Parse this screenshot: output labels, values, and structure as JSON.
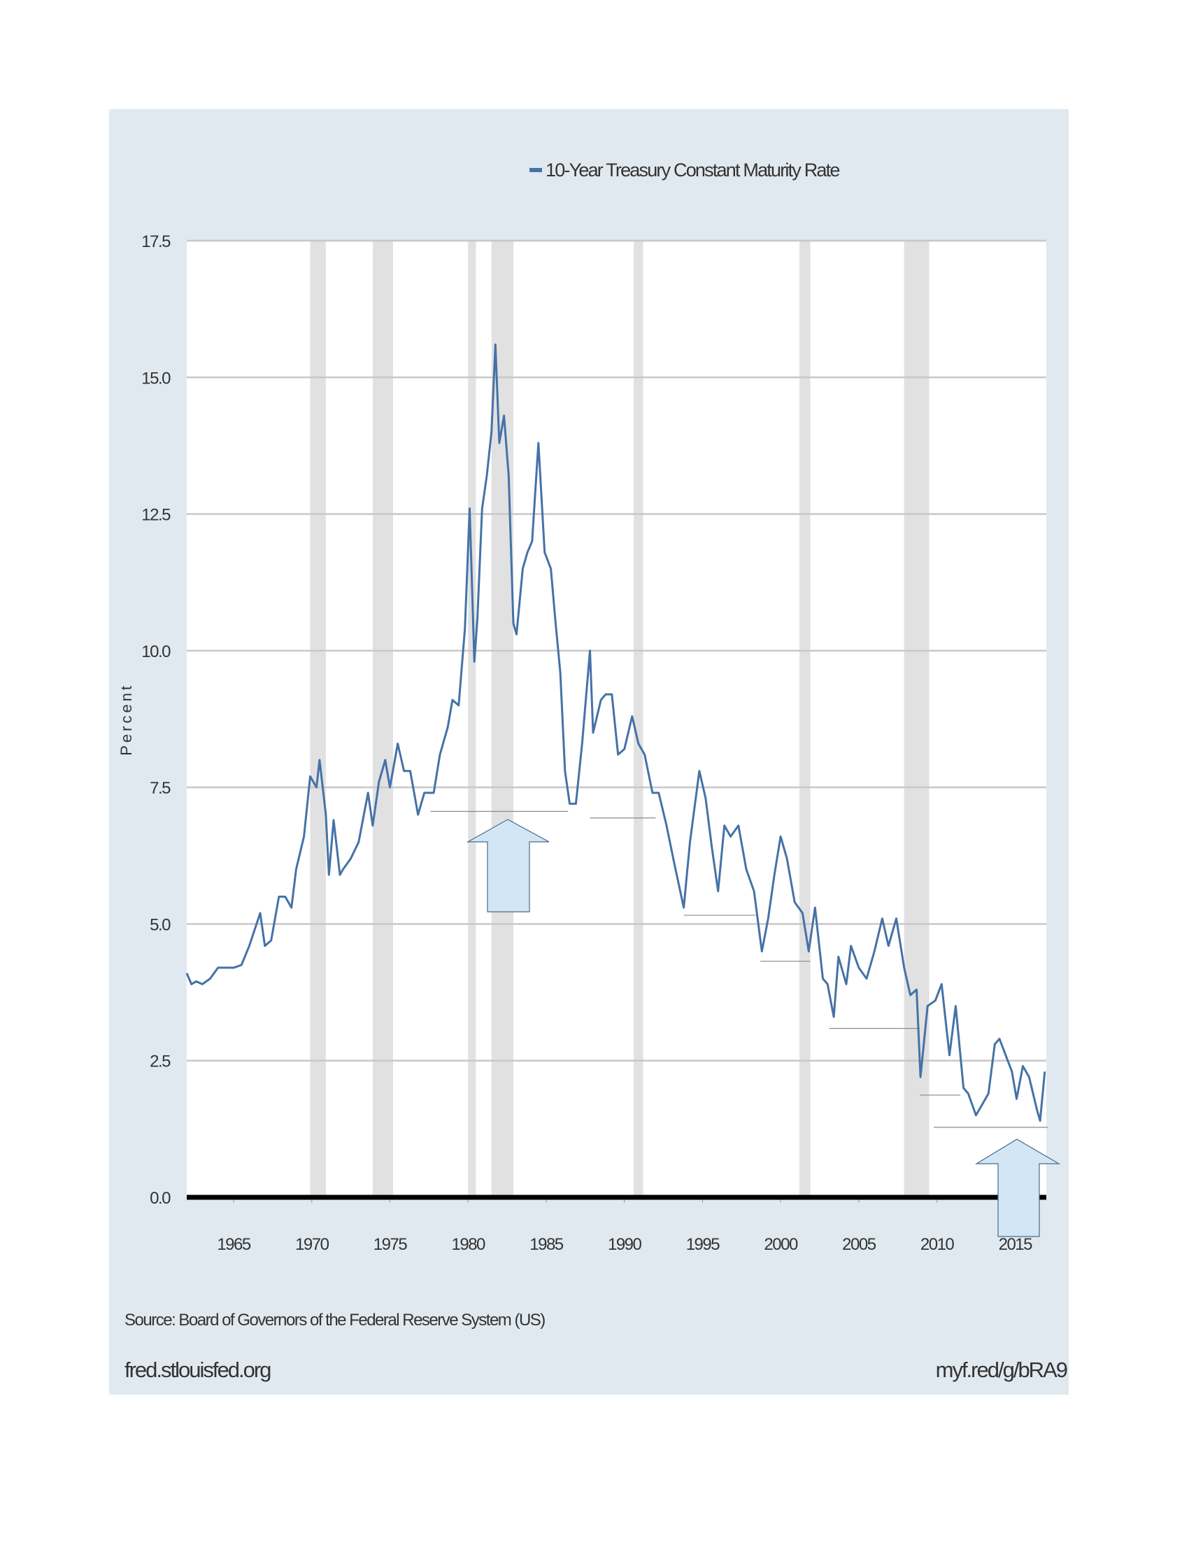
{
  "chart_data": {
    "type": "line",
    "legend": "10-Year Treasury Constant Maturity Rate",
    "ylabel": "Percent",
    "source": "Source: Board of Governors of the Federal Reserve System (US)",
    "footer_left": "fred.stlouisfed.org",
    "footer_right": "myf.red/g/bRA9",
    "xlim": [
      1962,
      2017
    ],
    "xticks": [
      1965,
      1970,
      1975,
      1980,
      1985,
      1990,
      1995,
      2000,
      2005,
      2010,
      2015
    ],
    "ylim": [
      0,
      17.5
    ],
    "yticks": [
      {
        "value": 0,
        "label": "0.0"
      },
      2.5,
      {
        "value": 5,
        "label": "5.0"
      },
      7.5,
      {
        "value": 10,
        "label": "10.0"
      },
      12.5,
      {
        "value": 15,
        "label": "15.0"
      },
      17.5
    ],
    "grid": true,
    "recessions": [
      [
        1969.9,
        1970.9
      ],
      [
        1973.9,
        1975.2
      ],
      [
        1980.0,
        1980.5
      ],
      [
        1981.5,
        1982.9
      ],
      [
        1990.6,
        1991.2
      ],
      [
        2001.2,
        2001.9
      ],
      [
        2007.9,
        2009.5
      ]
    ],
    "annotation_lines": [
      {
        "x1": 1977.6,
        "x2": 1986.4,
        "y": 7.06
      },
      {
        "x1": 1987.8,
        "x2": 1992.0,
        "y": 6.94
      },
      {
        "x1": 1993.8,
        "x2": 1998.4,
        "y": 5.16
      },
      {
        "x1": 1998.7,
        "x2": 2001.9,
        "y": 4.32
      },
      {
        "x1": 2003.1,
        "x2": 2008.9,
        "y": 3.09
      },
      {
        "x1": 2008.9,
        "x2": 2011.5,
        "y": 1.87
      },
      {
        "x1": 2009.8,
        "x2": 2017.1,
        "y": 1.28
      }
    ],
    "x": [
      1962.0,
      1962.3,
      1962.6,
      1963.0,
      1963.5,
      1964.0,
      1964.5,
      1965.0,
      1965.5,
      1966.0,
      1966.7,
      1967.0,
      1967.4,
      1967.9,
      1968.3,
      1968.7,
      1969.0,
      1969.5,
      1969.9,
      1970.3,
      1970.5,
      1970.9,
      1971.1,
      1971.4,
      1971.8,
      1972.0,
      1972.5,
      1973.0,
      1973.6,
      1973.9,
      1974.3,
      1974.7,
      1975.0,
      1975.5,
      1975.9,
      1976.3,
      1976.8,
      1977.2,
      1977.8,
      1978.2,
      1978.7,
      1979.0,
      1979.4,
      1979.8,
      1980.1,
      1980.4,
      1980.6,
      1980.9,
      1981.2,
      1981.5,
      1981.75,
      1982.0,
      1982.3,
      1982.6,
      1982.9,
      1983.1,
      1983.5,
      1983.8,
      1984.1,
      1984.5,
      1984.9,
      1985.3,
      1985.6,
      1985.9,
      1986.2,
      1986.5,
      1986.9,
      1987.3,
      1987.8,
      1988.0,
      1988.5,
      1988.8,
      1989.2,
      1989.6,
      1990.0,
      1990.5,
      1990.9,
      1991.3,
      1991.8,
      1992.2,
      1992.7,
      1993.2,
      1993.8,
      1994.2,
      1994.8,
      1995.2,
      1995.6,
      1996.0,
      1996.4,
      1996.8,
      1997.3,
      1997.8,
      1998.3,
      1998.8,
      1999.2,
      1999.6,
      2000.0,
      2000.4,
      2000.9,
      2001.4,
      2001.8,
      2002.2,
      2002.7,
      2003.0,
      2003.4,
      2003.7,
      2004.2,
      2004.5,
      2005.0,
      2005.5,
      2006.0,
      2006.5,
      2006.9,
      2007.4,
      2007.9,
      2008.3,
      2008.7,
      2008.95,
      2009.4,
      2009.9,
      2010.3,
      2010.8,
      2011.2,
      2011.7,
      2012.0,
      2012.5,
      2012.9,
      2013.3,
      2013.7,
      2014.0,
      2014.4,
      2014.8,
      2015.1,
      2015.5,
      2015.9,
      2016.4,
      2016.6,
      2016.9
    ],
    "series": [
      {
        "name": "10-Year Treasury Constant Maturity Rate",
        "color": "#4572a7",
        "values": [
          4.1,
          3.9,
          3.95,
          3.9,
          4.0,
          4.2,
          4.2,
          4.2,
          4.25,
          4.6,
          5.2,
          4.6,
          4.7,
          5.5,
          5.5,
          5.3,
          6.0,
          6.6,
          7.7,
          7.5,
          8.0,
          7.0,
          5.9,
          6.9,
          5.9,
          6.0,
          6.2,
          6.5,
          7.4,
          6.8,
          7.6,
          8.0,
          7.5,
          8.3,
          7.8,
          7.8,
          7.0,
          7.4,
          7.4,
          8.1,
          8.6,
          9.1,
          9.0,
          10.4,
          12.6,
          9.8,
          10.6,
          12.6,
          13.2,
          14.0,
          15.6,
          13.8,
          14.3,
          13.2,
          10.5,
          10.3,
          11.5,
          11.8,
          12.0,
          13.8,
          11.8,
          11.5,
          10.5,
          9.6,
          7.8,
          7.2,
          7.2,
          8.3,
          10.0,
          8.5,
          9.1,
          9.2,
          9.2,
          8.1,
          8.2,
          8.8,
          8.3,
          8.1,
          7.4,
          7.4,
          6.8,
          6.1,
          5.3,
          6.5,
          7.8,
          7.3,
          6.4,
          5.6,
          6.8,
          6.6,
          6.8,
          6.0,
          5.6,
          4.5,
          5.1,
          5.9,
          6.6,
          6.2,
          5.4,
          5.2,
          4.5,
          5.3,
          4.0,
          3.9,
          3.3,
          4.4,
          3.9,
          4.6,
          4.2,
          4.0,
          4.5,
          5.1,
          4.6,
          5.1,
          4.2,
          3.7,
          3.8,
          2.2,
          3.5,
          3.6,
          3.9,
          2.6,
          3.5,
          2.0,
          1.9,
          1.5,
          1.7,
          1.9,
          2.8,
          2.9,
          2.6,
          2.3,
          1.8,
          2.4,
          2.2,
          1.6,
          1.4,
          2.3
        ]
      }
    ]
  }
}
